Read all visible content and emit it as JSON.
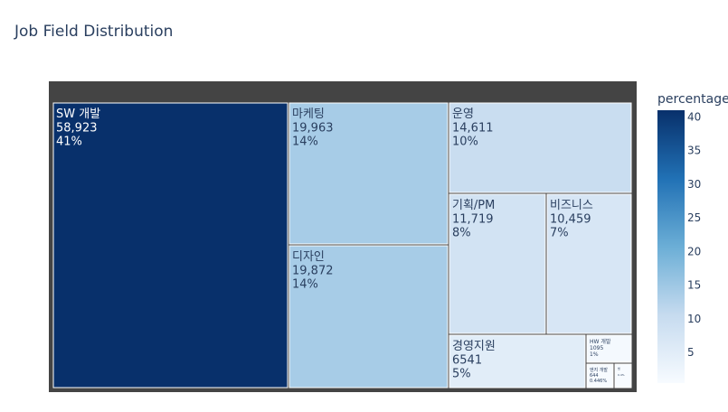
{
  "chart_data": {
    "type": "treemap",
    "title": "Job Field Distribution",
    "colorbar_title": "percentage",
    "colorbar_ticks": [
      5,
      10,
      15,
      20,
      25,
      30,
      35,
      40
    ],
    "color_range": [
      0.446,
      41
    ],
    "items": [
      {
        "label": "SW 개발",
        "value_text": "58,923",
        "percent_text": "41%",
        "percentage": 41
      },
      {
        "label": "마케팅",
        "value_text": "19,963",
        "percent_text": "14%",
        "percentage": 14
      },
      {
        "label": "디자인",
        "value_text": "19,872",
        "percent_text": "14%",
        "percentage": 14
      },
      {
        "label": "운영",
        "value_text": "14,611",
        "percent_text": "10%",
        "percentage": 10
      },
      {
        "label": "기획/PM",
        "value_text": "11,719",
        "percent_text": "8%",
        "percentage": 8
      },
      {
        "label": "비즈니스",
        "value_text": "10,459",
        "percent_text": "7%",
        "percentage": 7
      },
      {
        "label": "경영지원",
        "value_text": "6541",
        "percent_text": "5%",
        "percentage": 5
      },
      {
        "label": "HW 개발",
        "value_text": "1095",
        "percent_text": "1%",
        "percentage": 1
      },
      {
        "label": "엔지 개발",
        "value_text": "644",
        "percent_text": "0.446%",
        "percentage": 0.446
      },
      {
        "label": "법",
        "value_text": "",
        "percent_text": "0.4%",
        "percentage": 0.4
      }
    ]
  }
}
